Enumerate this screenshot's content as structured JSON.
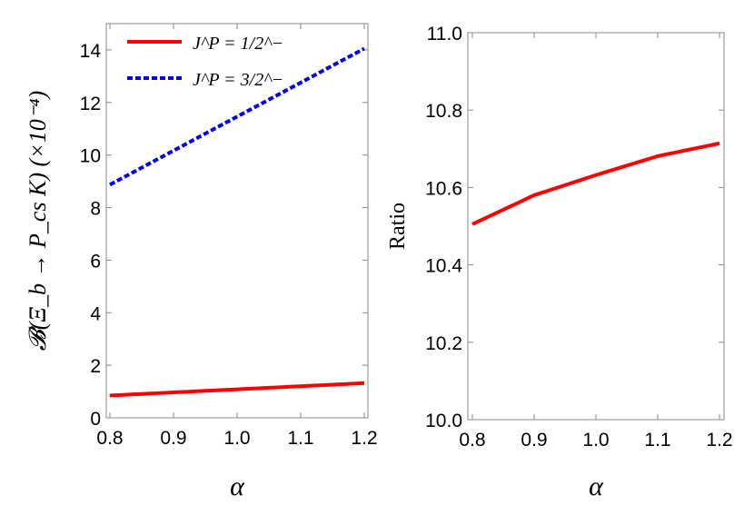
{
  "chart_data": [
    {
      "type": "line",
      "xlabel": "α",
      "ylabel": "𝓑(Ξ_b → P_cs K) (×10⁻⁴)",
      "xlim": [
        0.8,
        1.2
      ],
      "ylim": [
        0,
        15
      ],
      "xticks": [
        "0.8",
        "0.9",
        "1.0",
        "1.1",
        "1.2"
      ],
      "yticks": [
        "0",
        "2",
        "4",
        "6",
        "8",
        "10",
        "12",
        "14"
      ],
      "legend_placement": "top-left",
      "grid": false,
      "series": [
        {
          "name": "J^P = 1/2^−",
          "color": "#ff0000",
          "style": "solid",
          "x": [
            0.8,
            1.2
          ],
          "y": [
            0.85,
            1.32
          ]
        },
        {
          "name": "J^P = 3/2^−",
          "color": "#0000ee",
          "style": "dashed",
          "x": [
            0.8,
            1.2
          ],
          "y": [
            8.87,
            14.05
          ]
        }
      ]
    },
    {
      "type": "line",
      "xlabel": "α",
      "ylabel": "Ratio",
      "xlim": [
        0.8,
        1.2
      ],
      "ylim": [
        10.0,
        11.0
      ],
      "xticks": [
        "0.8",
        "0.9",
        "1.0",
        "1.1",
        "1.2"
      ],
      "yticks": [
        "10.0",
        "10.2",
        "10.4",
        "10.6",
        "10.8",
        "11.0"
      ],
      "grid": false,
      "series": [
        {
          "color": "#ff0000",
          "style": "solid",
          "x": [
            0.8,
            0.9,
            1.0,
            1.1,
            1.2
          ],
          "y": [
            10.505,
            10.58,
            10.632,
            10.681,
            10.714
          ]
        }
      ]
    }
  ]
}
